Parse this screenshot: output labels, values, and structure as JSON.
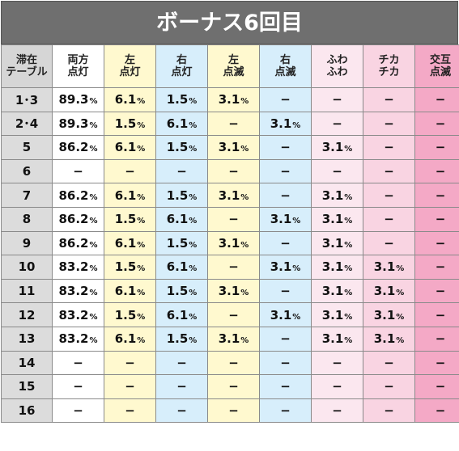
{
  "title": "ボーナス6回目",
  "headers": [
    [
      "滞在",
      "テーブル"
    ],
    [
      "両方",
      "点灯"
    ],
    [
      "左",
      "点灯"
    ],
    [
      "右",
      "点灯"
    ],
    [
      "左",
      "点滅"
    ],
    [
      "右",
      "点滅"
    ],
    [
      "ふわ",
      "ふわ"
    ],
    [
      "チカ",
      "チカ"
    ],
    [
      "交互",
      "点滅"
    ]
  ],
  "rows": [
    {
      "table": "1･3",
      "cells": [
        "89.3%",
        "6.1%",
        "1.5%",
        "3.1%",
        "−",
        "−",
        "−",
        "−"
      ]
    },
    {
      "table": "2･4",
      "cells": [
        "89.3%",
        "1.5%",
        "6.1%",
        "−",
        "3.1%",
        "−",
        "−",
        "−"
      ]
    },
    {
      "table": "5",
      "cells": [
        "86.2%",
        "6.1%",
        "1.5%",
        "3.1%",
        "−",
        "3.1%",
        "−",
        "−"
      ]
    },
    {
      "table": "6",
      "cells": [
        "−",
        "−",
        "−",
        "−",
        "−",
        "−",
        "−",
        "−"
      ]
    },
    {
      "table": "7",
      "cells": [
        "86.2%",
        "6.1%",
        "1.5%",
        "3.1%",
        "−",
        "3.1%",
        "−",
        "−"
      ]
    },
    {
      "table": "8",
      "cells": [
        "86.2%",
        "1.5%",
        "6.1%",
        "−",
        "3.1%",
        "3.1%",
        "−",
        "−"
      ]
    },
    {
      "table": "9",
      "cells": [
        "86.2%",
        "6.1%",
        "1.5%",
        "3.1%",
        "−",
        "3.1%",
        "−",
        "−"
      ]
    },
    {
      "table": "10",
      "cells": [
        "83.2%",
        "1.5%",
        "6.1%",
        "−",
        "3.1%",
        "3.1%",
        "3.1%",
        "−"
      ]
    },
    {
      "table": "11",
      "cells": [
        "83.2%",
        "6.1%",
        "1.5%",
        "3.1%",
        "−",
        "3.1%",
        "3.1%",
        "−"
      ]
    },
    {
      "table": "12",
      "cells": [
        "83.2%",
        "1.5%",
        "6.1%",
        "−",
        "3.1%",
        "3.1%",
        "3.1%",
        "−"
      ]
    },
    {
      "table": "13",
      "cells": [
        "83.2%",
        "6.1%",
        "1.5%",
        "3.1%",
        "−",
        "3.1%",
        "3.1%",
        "−"
      ]
    },
    {
      "table": "14",
      "cells": [
        "−",
        "−",
        "−",
        "−",
        "−",
        "−",
        "−",
        "−"
      ]
    },
    {
      "table": "15",
      "cells": [
        "−",
        "−",
        "−",
        "−",
        "−",
        "−",
        "−",
        "−"
      ]
    },
    {
      "table": "16",
      "cells": [
        "−",
        "−",
        "−",
        "−",
        "−",
        "−",
        "−",
        "−"
      ]
    }
  ]
}
